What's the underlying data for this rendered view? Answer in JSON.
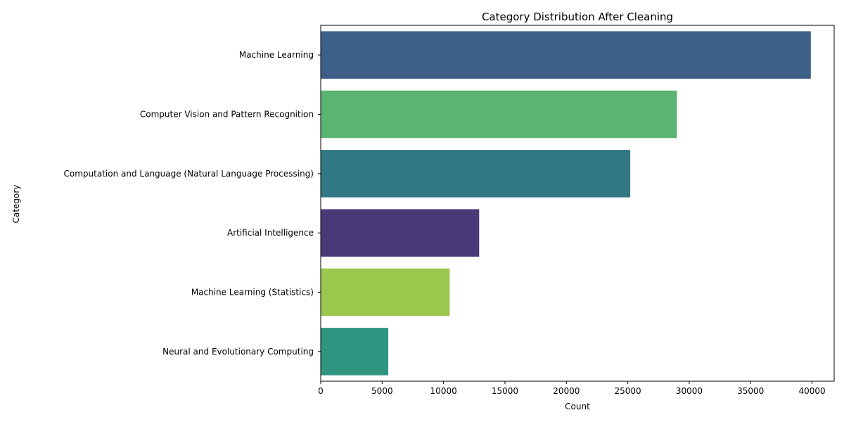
{
  "chart_data": {
    "type": "bar",
    "orientation": "horizontal",
    "title": "Category Distribution After Cleaning",
    "xlabel": "Count",
    "ylabel": "Category",
    "xlim": [
      0,
      41800
    ],
    "x_ticks": [
      0,
      5000,
      10000,
      15000,
      20000,
      25000,
      30000,
      35000,
      40000
    ],
    "x_tick_labels": [
      "0",
      "5000",
      "10000",
      "15000",
      "20000",
      "25000",
      "30000",
      "35000",
      "40000"
    ],
    "grid": false,
    "legend": "none",
    "categories": [
      "Machine Learning",
      "Computer Vision and Pattern Recognition",
      "Computation and Language (Natural Language Processing)",
      "Artificial Intelligence",
      "Machine Learning (Statistics)",
      "Neural and Evolutionary Computing"
    ],
    "values": [
      39900,
      29000,
      25200,
      12900,
      10500,
      5500
    ],
    "colors": [
      "#3e5f87",
      "#5ab572",
      "#327884",
      "#483a78",
      "#9bc74c",
      "#2f9581"
    ]
  }
}
